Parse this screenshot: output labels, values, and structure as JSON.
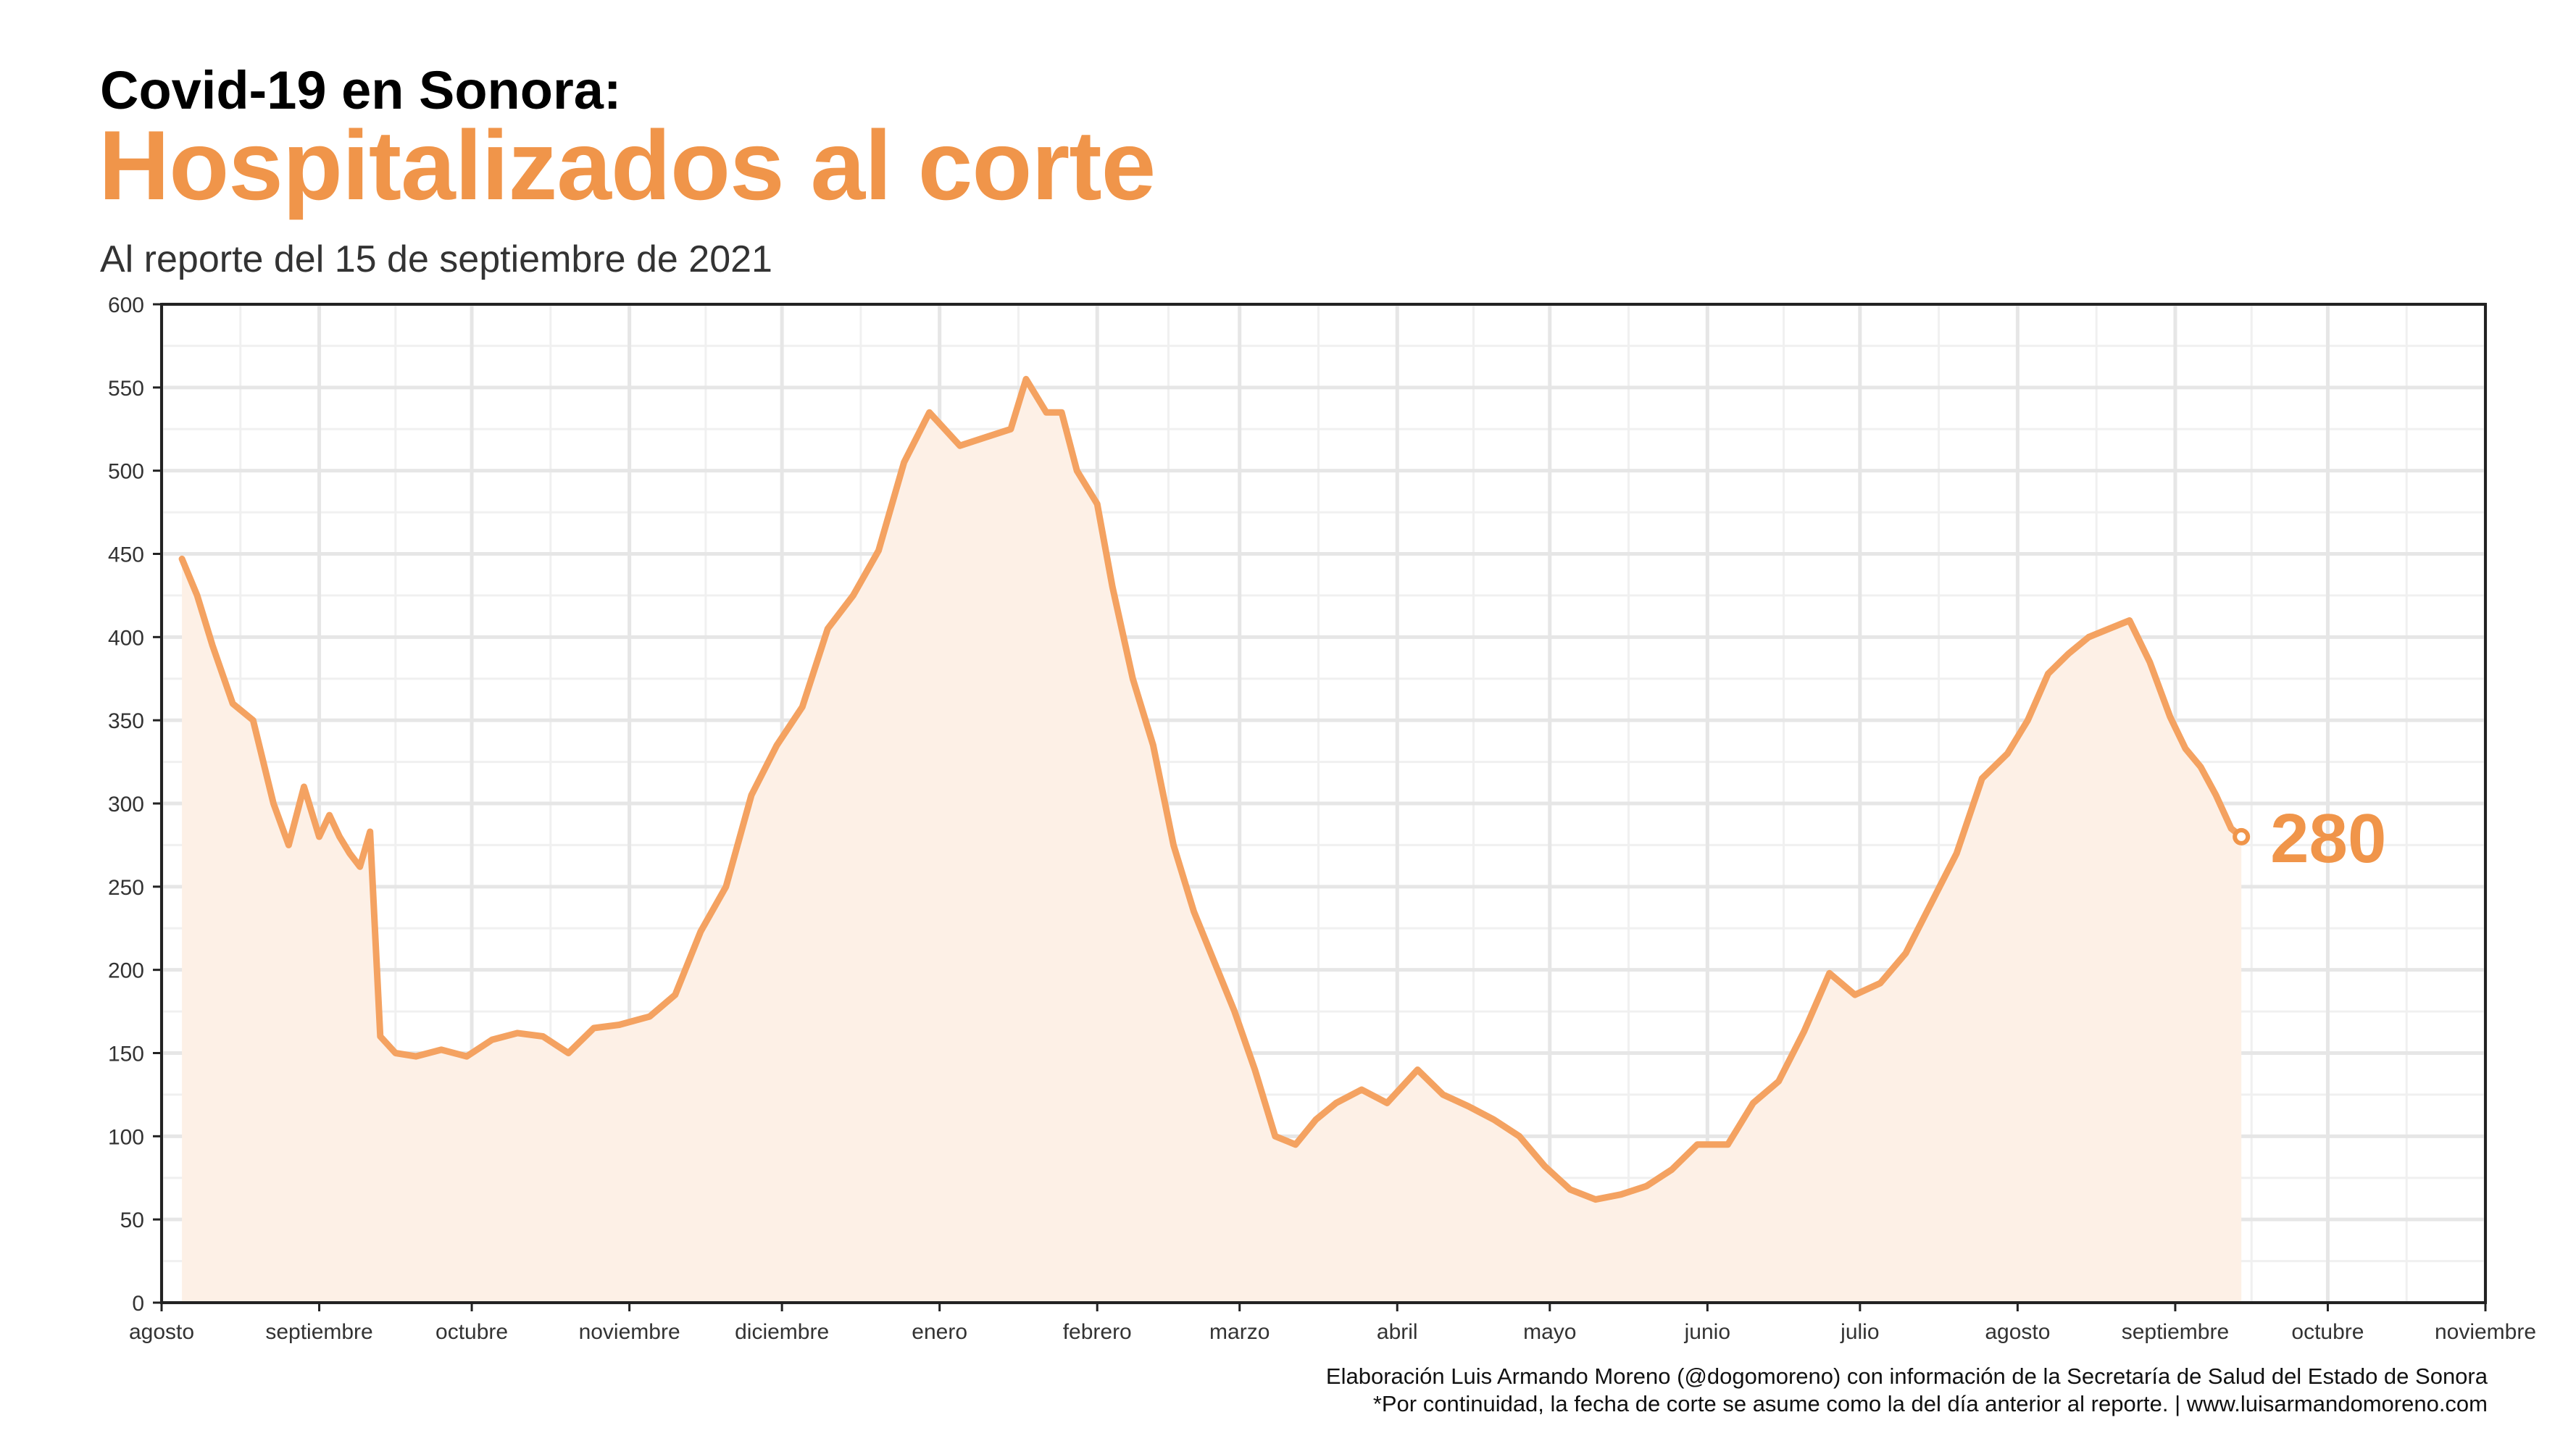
{
  "header": {
    "kicker": "Covid-19 en Sonora:",
    "title": "Hospitalizados al corte",
    "subtitle": "Al reporte del 15 de septiembre de 2021"
  },
  "footer": {
    "line1": "Elaboración Luis Armando Moreno (@dogomoreno) con información de la Secretaría de Salud del Estado de Sonora",
    "line2": "*Por continuidad, la fecha de corte se asume como la del día anterior al reporte. | www.luisarmandomoreno.com"
  },
  "colors": {
    "line": "#f4a261",
    "accent": "#f0954a",
    "fill": "#fdf0e6",
    "grid": "#e6e6e6"
  },
  "chart_data": {
    "type": "area",
    "x_axis": {
      "type": "date",
      "ticks": [
        "2020-08-01",
        "2020-09-01",
        "2020-10-01",
        "2020-11-01",
        "2020-12-01",
        "2021-01-01",
        "2021-02-01",
        "2021-03-01",
        "2021-04-01",
        "2021-05-01",
        "2021-06-01",
        "2021-07-01",
        "2021-08-01",
        "2021-09-01",
        "2021-10-01",
        "2021-11-01"
      ],
      "tick_labels": [
        "agosto",
        "septiembre",
        "octubre",
        "noviembre",
        "diciembre",
        "enero",
        "febrero",
        "marzo",
        "abril",
        "mayo",
        "junio",
        "julio",
        "agosto",
        "septiembre",
        "octubre",
        "noviembre"
      ],
      "range": [
        "2020-08-01",
        "2021-11-01"
      ]
    },
    "y_axis": {
      "range": [
        0,
        600
      ],
      "ticks": [
        0,
        50,
        100,
        150,
        200,
        250,
        300,
        350,
        400,
        450,
        500,
        550,
        600
      ]
    },
    "grid": true,
    "last_label": "280",
    "series": [
      {
        "x": [
          "2020-08-05",
          "2020-08-08",
          "2020-08-11",
          "2020-08-15",
          "2020-08-19",
          "2020-08-23",
          "2020-08-26",
          "2020-08-29",
          "2020-09-01",
          "2020-09-03",
          "2020-09-05",
          "2020-09-07",
          "2020-09-09",
          "2020-09-11",
          "2020-09-13",
          "2020-09-16",
          "2020-09-20",
          "2020-09-25",
          "2020-09-30",
          "2020-10-05",
          "2020-10-10",
          "2020-10-15",
          "2020-10-20",
          "2020-10-25",
          "2020-10-30",
          "2020-11-05",
          "2020-11-10",
          "2020-11-15",
          "2020-11-20",
          "2020-11-25",
          "2020-11-30",
          "2020-12-05",
          "2020-12-10",
          "2020-12-15",
          "2020-12-20",
          "2020-12-25",
          "2020-12-30",
          "2021-01-05",
          "2021-01-10",
          "2021-01-15",
          "2021-01-18",
          "2021-01-22",
          "2021-01-25",
          "2021-01-28",
          "2021-02-01",
          "2021-02-04",
          "2021-02-08",
          "2021-02-12",
          "2021-02-16",
          "2021-02-20",
          "2021-02-24",
          "2021-02-28",
          "2021-03-04",
          "2021-03-08",
          "2021-03-12",
          "2021-03-16",
          "2021-03-20",
          "2021-03-25",
          "2021-03-30",
          "2021-04-05",
          "2021-04-10",
          "2021-04-15",
          "2021-04-20",
          "2021-04-25",
          "2021-04-30",
          "2021-05-05",
          "2021-05-10",
          "2021-05-15",
          "2021-05-20",
          "2021-05-25",
          "2021-05-30",
          "2021-06-05",
          "2021-06-10",
          "2021-06-15",
          "2021-06-20",
          "2021-06-25",
          "2021-06-30",
          "2021-07-05",
          "2021-07-10",
          "2021-07-15",
          "2021-07-20",
          "2021-07-25",
          "2021-07-30",
          "2021-08-03",
          "2021-08-07",
          "2021-08-11",
          "2021-08-15",
          "2021-08-19",
          "2021-08-23",
          "2021-08-27",
          "2021-08-31",
          "2021-09-03",
          "2021-09-06",
          "2021-09-09",
          "2021-09-12",
          "2021-09-14"
        ],
        "y": [
          447,
          425,
          395,
          360,
          350,
          300,
          275,
          310,
          280,
          293,
          280,
          270,
          262,
          283,
          160,
          150,
          148,
          152,
          148,
          158,
          162,
          160,
          150,
          165,
          167,
          172,
          185,
          223,
          250,
          305,
          335,
          358,
          405,
          425,
          452,
          505,
          535,
          515,
          520,
          525,
          555,
          535,
          535,
          500,
          480,
          430,
          375,
          335,
          275,
          235,
          205,
          175,
          140,
          100,
          95,
          110,
          120,
          128,
          120,
          140,
          125,
          118,
          110,
          100,
          82,
          68,
          62,
          65,
          70,
          80,
          95,
          95,
          120,
          133,
          163,
          198,
          185,
          192,
          210,
          240,
          270,
          315,
          330,
          350,
          378,
          390,
          400,
          405,
          410,
          385,
          352,
          333,
          322,
          305,
          285,
          280
        ]
      }
    ]
  }
}
